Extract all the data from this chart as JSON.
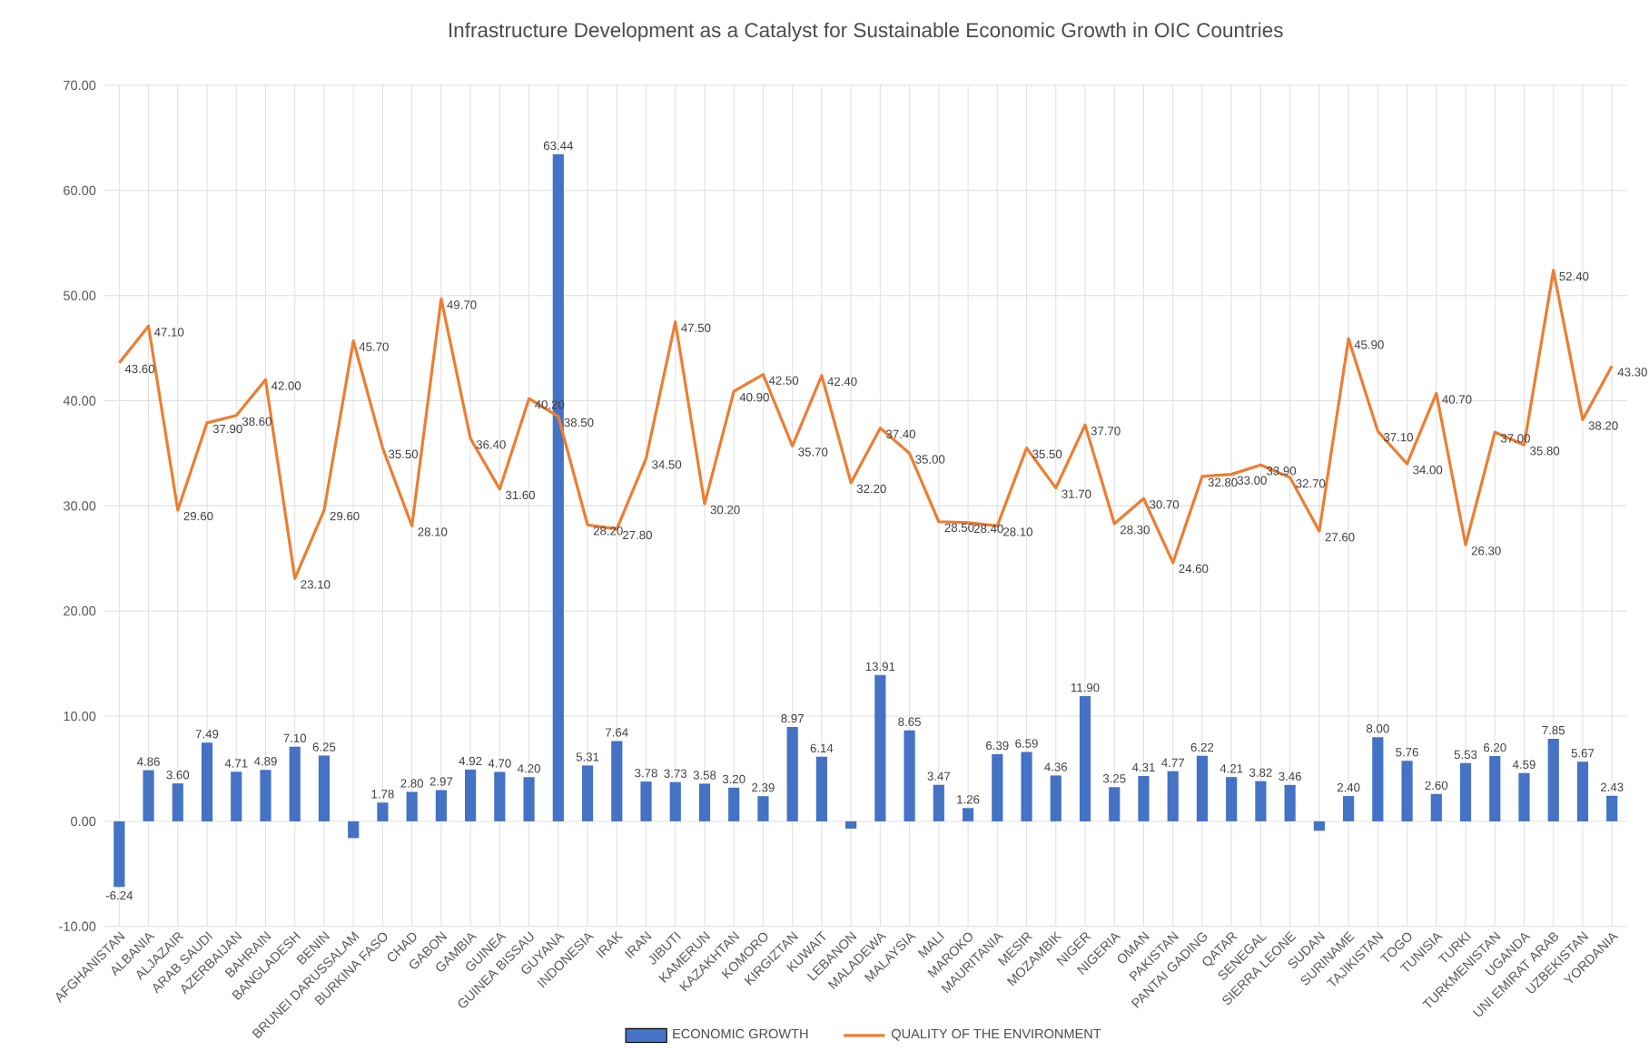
{
  "chart_data": {
    "type": "bar",
    "title": "Infrastructure Development as a Catalyst for Sustainable Economic Growth in OIC Countries",
    "categories": [
      "AFGHANISTAN",
      "ALBANIA",
      "ALJAZAIR",
      "ARAB SAUDI",
      "AZERBAIJAN",
      "BAHRAIN",
      "BANGLADESH",
      "BENIN",
      "BRUNEI DARUSSALAM",
      "BURKINA FASO",
      "CHAD",
      "GABON",
      "GAMBIA",
      "GUINEA",
      "GUINEA BISSAU",
      "GUYANA",
      "INDONESIA",
      "IRAK",
      "IRAN",
      "JIBUTI",
      "KAMERUN",
      "KAZAKHTAN",
      "KOMORO",
      "KIRGIZTAN",
      "KUWAIT",
      "LEBANON",
      "MALADEWA",
      "MALAYSIA",
      "MALI",
      "MAROKO",
      "MAURITANIA",
      "MESIR",
      "MOZAMBIK",
      "NIGER",
      "NIGERIA",
      "OMAN",
      "PAKISTAN",
      "PANTAI GADING",
      "QATAR",
      "SENEGAL",
      "SIERRA LEONE",
      "SUDAN",
      "SURINAME",
      "TAJIKISTAN",
      "TOGO",
      "TUNISIA",
      "TURKI",
      "TURKMENISTAN",
      "UGANDA",
      "UNI EMIRAT ARAB",
      "UZBEKISTAN",
      "YORDANIA"
    ],
    "series": [
      {
        "name": "ECONOMIC GROWTH",
        "color": "#4472c4",
        "values": [
          -6.24,
          4.86,
          3.6,
          7.49,
          4.71,
          4.89,
          7.1,
          6.25,
          -1.6,
          1.78,
          2.8,
          2.97,
          4.92,
          4.7,
          4.2,
          63.44,
          5.31,
          7.64,
          3.78,
          3.73,
          3.58,
          3.2,
          2.39,
          8.97,
          6.14,
          -0.7,
          13.91,
          8.65,
          3.47,
          1.26,
          6.39,
          6.59,
          4.36,
          11.9,
          3.25,
          4.31,
          4.77,
          6.22,
          4.21,
          3.82,
          3.46,
          -0.9,
          2.4,
          8.0,
          5.76,
          2.6,
          5.53,
          6.2,
          4.59,
          7.85,
          5.67,
          2.43
        ],
        "value_labels": [
          "-6.24",
          "4.86",
          "3.60",
          "7.49",
          "4.71",
          "4.89",
          "7.10",
          "6.25",
          null,
          "1.78",
          "2.80",
          "2.97",
          "4.92",
          "4.70",
          "4.20",
          "63.44",
          "5.31",
          "7.64",
          "3.78",
          "3.73",
          "3.58",
          "3.20",
          "2.39",
          "8.97",
          "6.14",
          null,
          "13.91",
          "8.65",
          "3.47",
          "1.26",
          "6.39",
          "6.59",
          "4.36",
          "11.90",
          "3.25",
          "4.31",
          "4.77",
          "6.22",
          "4.21",
          "3.82",
          "3.46",
          null,
          "2.40",
          "8.00",
          "5.76",
          "2.60",
          "5.53",
          "6.20",
          "4.59",
          "7.85",
          "5.67",
          "2.43"
        ]
      },
      {
        "name": "QUALITY OF THE ENVIRONMENT",
        "type": "line",
        "color": "#ed7d31",
        "values": [
          43.6,
          47.1,
          29.6,
          37.9,
          38.6,
          42.0,
          23.1,
          29.6,
          45.7,
          35.5,
          28.1,
          49.7,
          36.4,
          31.6,
          40.2,
          38.5,
          28.2,
          27.8,
          34.5,
          47.5,
          30.2,
          40.9,
          42.5,
          35.7,
          42.4,
          32.2,
          37.4,
          35.0,
          28.5,
          28.4,
          28.1,
          35.5,
          31.7,
          37.7,
          28.3,
          30.7,
          24.6,
          32.8,
          33.0,
          33.9,
          32.7,
          27.6,
          45.9,
          37.1,
          34.0,
          40.7,
          26.3,
          37.0,
          35.8,
          52.4,
          38.2,
          43.3
        ],
        "value_labels": [
          "43.60",
          "47.10",
          "29.60",
          "37.90",
          "38.60",
          "42.00",
          "23.10",
          "29.60",
          "45.70",
          "35.50",
          "28.10",
          "49.70",
          "36.40",
          "31.60",
          "40.20",
          "38.50",
          "28.20",
          "27.80",
          "34.50",
          "47.50",
          "30.20",
          "40.90",
          "42.50",
          "35.70",
          "42.40",
          "32.20",
          "37.40",
          "35.00",
          "28.50",
          "28.40",
          "28.10",
          "35.50",
          "31.70",
          "37.70",
          "28.30",
          "30.70",
          "24.60",
          "32.80",
          "33.00",
          "33.90",
          "32.70",
          "27.60",
          "45.90",
          "37.10",
          "34.00",
          "40.70",
          "26.30",
          "37.00",
          "35.80",
          "52.40",
          "38.20",
          "43.30"
        ]
      }
    ],
    "ylim": [
      -10,
      70
    ],
    "yticks": [
      {
        "value": -10,
        "label": "-10.00"
      },
      {
        "value": 0,
        "label": "0.00"
      },
      {
        "value": 10,
        "label": "10.00"
      },
      {
        "value": 20,
        "label": "20.00"
      },
      {
        "value": 30,
        "label": "30.00"
      },
      {
        "value": 40,
        "label": "40.00"
      },
      {
        "value": 50,
        "label": "50.00"
      },
      {
        "value": 60,
        "label": "60.00"
      },
      {
        "value": 70,
        "label": "70.00"
      }
    ],
    "grid": true,
    "legend": "bottom"
  }
}
